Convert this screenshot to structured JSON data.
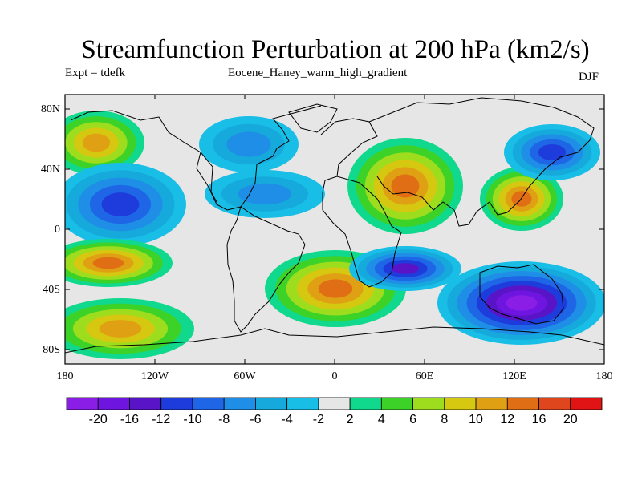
{
  "header": {
    "title": "Streamfunction Perturbation at 200 hPa (km2/s)",
    "left_label": "Expt = tdefk",
    "center_label": "Eocene_Haney_warm_high_gradient",
    "right_label": "DJF"
  },
  "axes": {
    "lat_ticks": [
      "80N",
      "40N",
      "0",
      "40S",
      "80S"
    ],
    "lon_ticks": [
      "180",
      "120W",
      "60W",
      "0",
      "60E",
      "120E",
      "180"
    ]
  },
  "colorbar": {
    "colors": [
      "#8a1ee6",
      "#6e16e0",
      "#5a14c8",
      "#1e3cdc",
      "#1e66e6",
      "#1e8ee6",
      "#16aadc",
      "#18bee6",
      "#e6e6e6",
      "#10d88c",
      "#3cd228",
      "#9edc1e",
      "#d6c810",
      "#e0a014",
      "#e06e14",
      "#e0461e",
      "#e01414"
    ],
    "labels": [
      "-20",
      "-16",
      "-12",
      "-10",
      "-8",
      "-6",
      "-4",
      "-2",
      "2",
      "4",
      "6",
      "8",
      "10",
      "12",
      "16",
      "20"
    ]
  },
  "map_data": {
    "field_values": {
      "n_pacific_high": 10,
      "pacific_low_20N": -10,
      "n_america_low": -6,
      "n_atlantic_low": -6,
      "europe_high": 14,
      "nw_pacific_high": 14,
      "nw_pacific_low": -10,
      "s_atlantic_high": 14,
      "s_pacific_high_20S": 12,
      "s_pacific_high_60S": 10,
      "indian_ocean_low": -12,
      "australia_low": -20
    }
  }
}
